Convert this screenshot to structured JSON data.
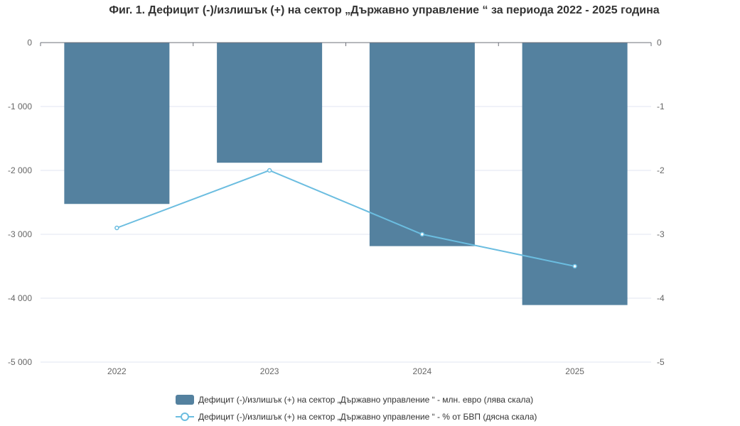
{
  "chart_data": {
    "type": "bar",
    "title": "Фиг. 1. Дефицит (-)/излишък (+) на сектор „Държавно управление “ за периода 2022 - 2025 година",
    "categories": [
      "2022",
      "2023",
      "2024",
      "2025"
    ],
    "left_axis": {
      "ylim": [
        -5000,
        0
      ],
      "ticks": [
        0,
        -1000,
        -2000,
        -3000,
        -4000,
        -5000
      ],
      "tick_labels": [
        "0",
        "-1 000",
        "-2 000",
        "-3 000",
        "-4 000",
        "-5 000"
      ]
    },
    "right_axis": {
      "ylim": [
        -5,
        0
      ],
      "ticks": [
        0,
        -1,
        -2,
        -3,
        -4,
        -5
      ],
      "tick_labels": [
        "0",
        "-1",
        "-2",
        "-3",
        "-4",
        "-5"
      ]
    },
    "grid": true,
    "legend_placement": "bottom",
    "series": [
      {
        "name": "Дефицит (-)/излишък (+) на сектор „Държавно управление “ - млн. евро (лява скала)",
        "type": "bar",
        "axis": "left",
        "color": "#54819f",
        "values": [
          -2525,
          -1880,
          -3185,
          -4107
        ]
      },
      {
        "name": "Дефицит (-)/излишък (+) на сектор „Държавно управление “ - % от БВП (дясна скала)",
        "type": "line",
        "axis": "right",
        "color": "#6bbde0",
        "values": [
          -2.9,
          -2.0,
          -3.0,
          -3.5
        ]
      }
    ]
  }
}
